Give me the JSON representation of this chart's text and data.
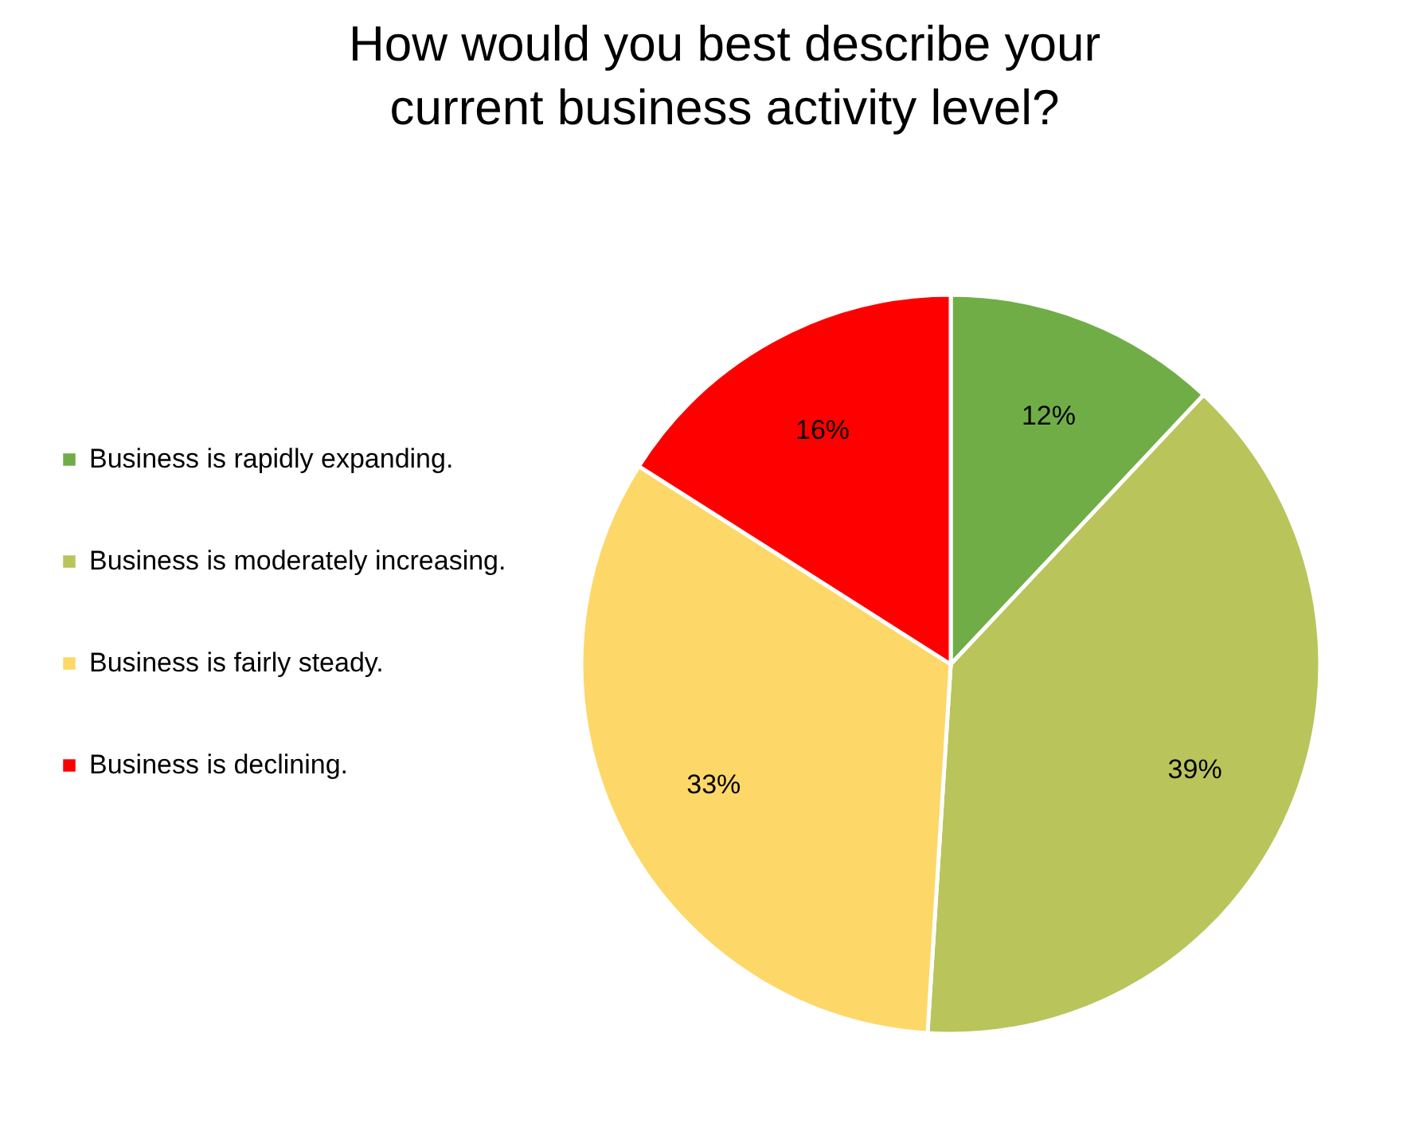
{
  "chart_data": {
    "type": "pie",
    "title": "How would you best describe your current business activity level?",
    "categories": [
      "Business is rapidly expanding.",
      "Business is moderately increasing.",
      "Business is fairly steady.",
      "Business is declining."
    ],
    "values": [
      12,
      39,
      33,
      16
    ],
    "colors": [
      "#70ad47",
      "#b9c45b",
      "#fdd868",
      "#ff0000"
    ],
    "value_labels": [
      "12%",
      "39%",
      "33%",
      "16%"
    ],
    "legend": "left"
  }
}
